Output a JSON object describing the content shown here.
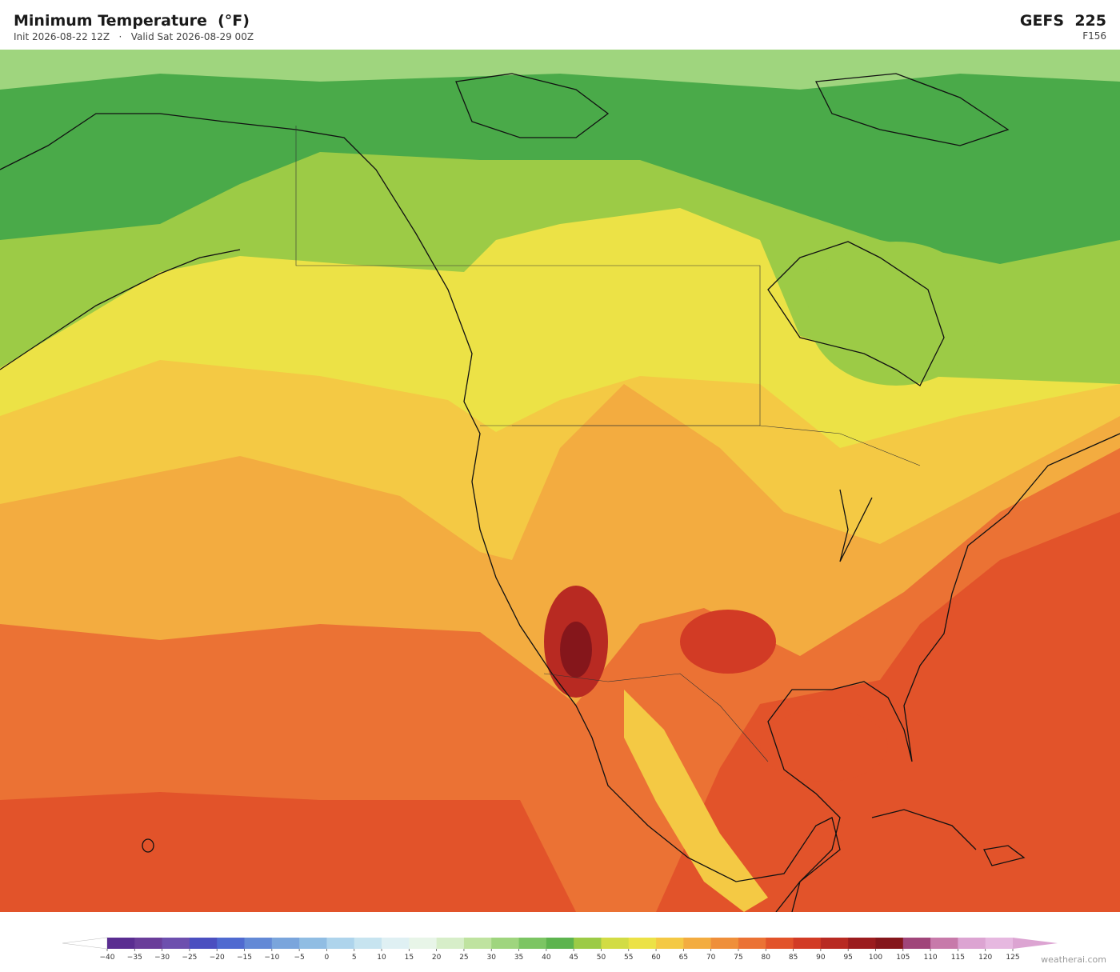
{
  "header": {
    "title": "Minimum Temperature  (°F)",
    "init": "Init 2026-08-22 12Z",
    "separator": "·",
    "valid": "Valid Sat 2026-08-29 00Z",
    "model": "GEFS  225",
    "forecast_hour": "F156"
  },
  "colorbar": {
    "ticks": [
      {
        "value": -40,
        "label": "−40"
      },
      {
        "value": -35,
        "label": "−35"
      },
      {
        "value": -30,
        "label": "−30"
      },
      {
        "value": -25,
        "label": "−25"
      },
      {
        "value": -20,
        "label": "−20"
      },
      {
        "value": -15,
        "label": "−15"
      },
      {
        "value": -10,
        "label": "−10"
      },
      {
        "value": -5,
        "label": "−5"
      },
      0,
      5,
      10,
      15,
      20,
      25,
      30,
      35,
      40,
      45,
      50,
      55,
      60,
      65,
      70,
      75,
      80,
      85,
      90,
      95,
      100,
      105,
      110,
      115,
      120,
      125
    ],
    "colors": [
      "#5a2d91",
      "#6a3d9a",
      "#6d4fae",
      "#4b4fc0",
      "#4f6ad0",
      "#6389d6",
      "#7aa5dc",
      "#90bde3",
      "#aed4ec",
      "#c7e4f0",
      "#dff0f3",
      "#e8f5e8",
      "#d7eec9",
      "#bfe3a0",
      "#9fd57e",
      "#7cc563",
      "#5db44e",
      "#9ccb46",
      "#d2dc44",
      "#ece246",
      "#f4c944",
      "#f3ac40",
      "#ef8f3a",
      "#eb7234",
      "#e2532a",
      "#d23b25",
      "#b82a22",
      "#9b1c1e",
      "#85161b",
      "#a0457a",
      "#c77aaa",
      "#dca4d2",
      "#e6b8e0"
    ],
    "under_color": "#ffffff",
    "over_color": "#dca4d2"
  },
  "watermark": "weatherai.com"
}
